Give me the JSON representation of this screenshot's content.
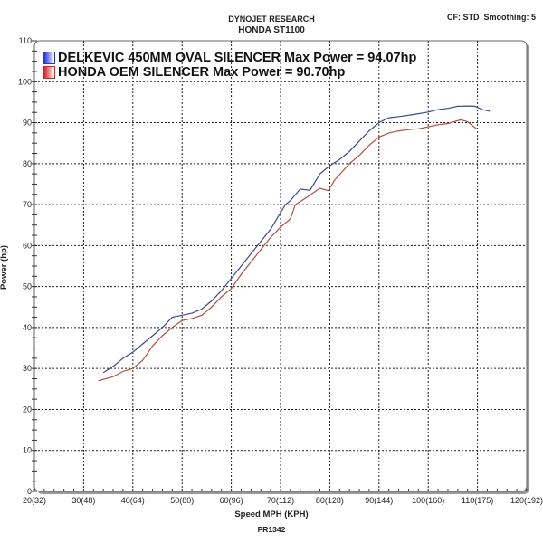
{
  "header": {
    "title": "DYNOJET RESEARCH",
    "subtitle": "HONDA ST1100",
    "settings": "CF: STD  Smoothing: 5"
  },
  "footer": "PR1342",
  "chart_data": {
    "type": "line",
    "xlabel": "Speed MPH (KPH)",
    "ylabel": "Power (hp)",
    "xlim": [
      20,
      120
    ],
    "ylim": [
      0,
      110
    ],
    "grid": true,
    "legend_placement": "top-left",
    "x_ticks": [
      20,
      30,
      40,
      50,
      60,
      70,
      80,
      90,
      100,
      110,
      120
    ],
    "x_tick_labels": [
      "20(32)",
      "30(48)",
      "40(64)",
      "50(80)",
      "60(96)",
      "70(112)",
      "80(128)",
      "90(144)",
      "100(160)",
      "110(175)",
      "120(192)"
    ],
    "y_ticks": [
      0,
      10,
      20,
      30,
      40,
      50,
      60,
      70,
      80,
      90,
      100,
      110
    ],
    "y_tick_labels": [
      "0",
      "10",
      "20",
      "30",
      "40",
      "50",
      "60",
      "70",
      "80",
      "90",
      "100",
      "110"
    ],
    "series": [
      {
        "name": "DELKEVIC 450MM OVAL SILENCER Max Power = 94.07hp",
        "color": "#3a4a8c",
        "swatch": "#2233dd",
        "x": [
          34,
          36,
          38,
          40,
          42,
          44,
          46,
          48,
          50,
          52,
          54,
          56,
          58,
          60,
          62,
          64,
          66,
          68,
          70,
          71,
          72,
          74,
          76,
          78,
          80,
          82,
          84,
          86,
          88,
          90,
          92,
          94,
          96,
          98,
          100,
          102,
          104,
          106,
          108,
          109.5,
          111,
          112.5
        ],
        "y": [
          29,
          30.5,
          32.5,
          34,
          36,
          38,
          40,
          42.5,
          43,
          43.5,
          44.5,
          46.5,
          49,
          52,
          55,
          58,
          61,
          64,
          68,
          70,
          71,
          73.8,
          73.5,
          77.5,
          79.5,
          81,
          83,
          85.5,
          88,
          90,
          91.2,
          91.5,
          91.8,
          92.2,
          92.6,
          93.2,
          93.5,
          94,
          94.07,
          94,
          93.2,
          92.8
        ]
      },
      {
        "name": "HONDA OEM SILENCER Max Power = 90.70hp",
        "color": "#b0503c",
        "swatch": "#dd2222",
        "x": [
          33,
          36,
          38,
          40,
          42,
          44,
          46,
          48,
          50,
          52,
          54,
          56,
          58,
          60,
          62,
          64,
          66,
          68,
          70,
          72,
          73,
          75,
          78,
          79.7,
          81,
          82.8,
          84,
          86,
          88,
          90,
          92,
          94,
          96,
          98,
          100,
          102,
          104,
          106.6,
          108,
          109.8
        ],
        "y": [
          27,
          28,
          29.3,
          30,
          32,
          35.5,
          38,
          40,
          41.7,
          42.2,
          43,
          45,
          47.5,
          49.5,
          53,
          56,
          59,
          62,
          64.5,
          66.5,
          70,
          71.5,
          74,
          73.4,
          76,
          78.4,
          80,
          82,
          84.5,
          86.5,
          87.5,
          88,
          88.3,
          88.5,
          89,
          89.5,
          89.8,
          90.7,
          90.2,
          88.5
        ]
      }
    ]
  }
}
